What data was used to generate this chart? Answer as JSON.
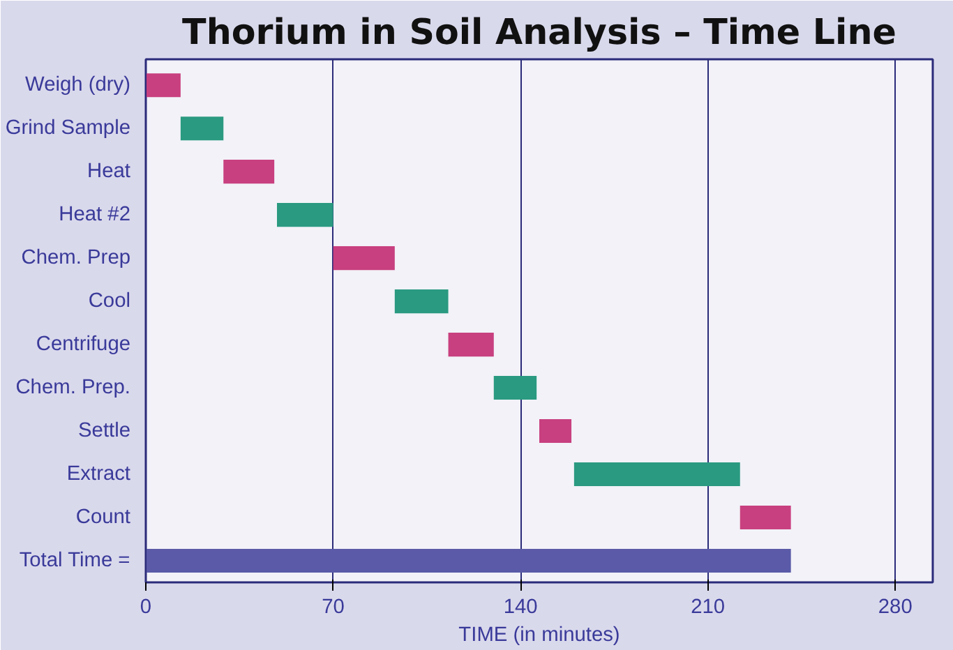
{
  "chart_data": {
    "type": "bar",
    "orientation": "horizontal",
    "title": "Thorium in Soil Analysis – Time Line",
    "xlabel": "TIME (in minutes)",
    "categories": [
      "Weigh (dry)",
      "Grind Sample",
      "Heat",
      "Heat #2",
      "Chem. Prep",
      "Cool",
      "Centrifuge",
      "Chem. Prep.",
      "Settle",
      "Extract",
      "Count",
      "Total Time ="
    ],
    "base": [
      0,
      13,
      29,
      49,
      70,
      93,
      113,
      130,
      147,
      160,
      222,
      0
    ],
    "values": [
      13,
      16,
      19,
      21,
      23,
      20,
      17,
      16,
      12,
      62,
      19,
      241
    ],
    "colors": [
      "#c8407f",
      "#2a9a80",
      "#c8407f",
      "#2a9a80",
      "#c8407f",
      "#2a9a80",
      "#c8407f",
      "#2a9a80",
      "#c8407f",
      "#2a9a80",
      "#c8407f",
      "#5a5aa8"
    ],
    "xlim": [
      0,
      294
    ],
    "xticks": [
      0,
      70,
      140,
      210,
      280
    ],
    "grid": "x"
  }
}
